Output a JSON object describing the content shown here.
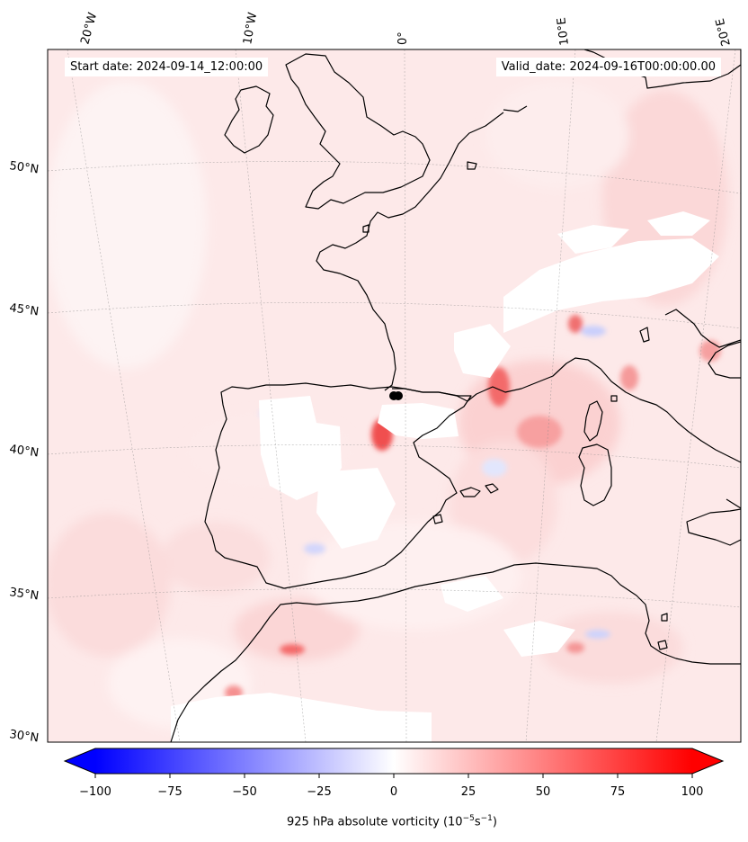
{
  "header": {
    "start_date": "Start date: 2024-09-14_12:00:00",
    "valid_date": "Valid_date: 2024-09-16T00:00:00.00"
  },
  "map": {
    "longitude_labels": [
      "20°W",
      "10°W",
      "0°",
      "10°E",
      "20°E"
    ],
    "latitude_labels": [
      "50°N",
      "45°N",
      "40°N",
      "35°N",
      "30°N"
    ],
    "field_colors": {
      "positive": "#ff0000",
      "negative": "#0000ff",
      "neutral": "#ffffff"
    },
    "coastline_color": "#000000",
    "marker": {
      "lon": -0.5,
      "lat": 42.2,
      "color": "#000000"
    }
  },
  "colorbar": {
    "ticks": [
      "−100",
      "−75",
      "−50",
      "−25",
      "0",
      "25",
      "50",
      "75",
      "100"
    ],
    "min": -100,
    "max": 100,
    "label_prefix": "925 hPa absolute vorticity (10",
    "label_exp1": "−5",
    "label_mid": "s",
    "label_exp2": "−1",
    "label_suffix": ")"
  }
}
